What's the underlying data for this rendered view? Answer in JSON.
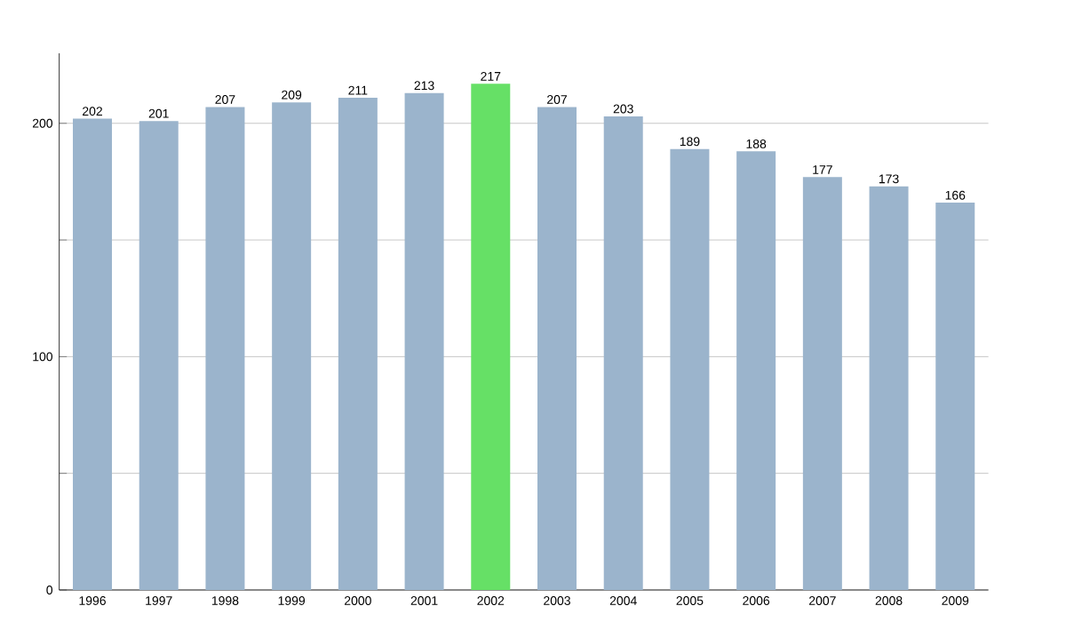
{
  "chart_data": {
    "type": "bar",
    "categories": [
      "1996",
      "1997",
      "1998",
      "1999",
      "2000",
      "2001",
      "2002",
      "2003",
      "2004",
      "2005",
      "2006",
      "2007",
      "2008",
      "2009"
    ],
    "values": [
      202,
      201,
      207,
      209,
      211,
      213,
      217,
      207,
      203,
      189,
      188,
      177,
      173,
      166
    ],
    "colors": [
      "#9bb4cc",
      "#9bb4cc",
      "#9bb4cc",
      "#9bb4cc",
      "#9bb4cc",
      "#9bb4cc",
      "#66e066",
      "#9bb4cc",
      "#9bb4cc",
      "#9bb4cc",
      "#9bb4cc",
      "#9bb4cc",
      "#9bb4cc",
      "#9bb4cc"
    ],
    "ylim": [
      0,
      230
    ],
    "yticks": [
      0,
      {
        "value": 50,
        "label": null
      },
      100,
      {
        "value": 150,
        "label": null
      },
      200
    ],
    "grid": "y",
    "data_labels": true
  }
}
